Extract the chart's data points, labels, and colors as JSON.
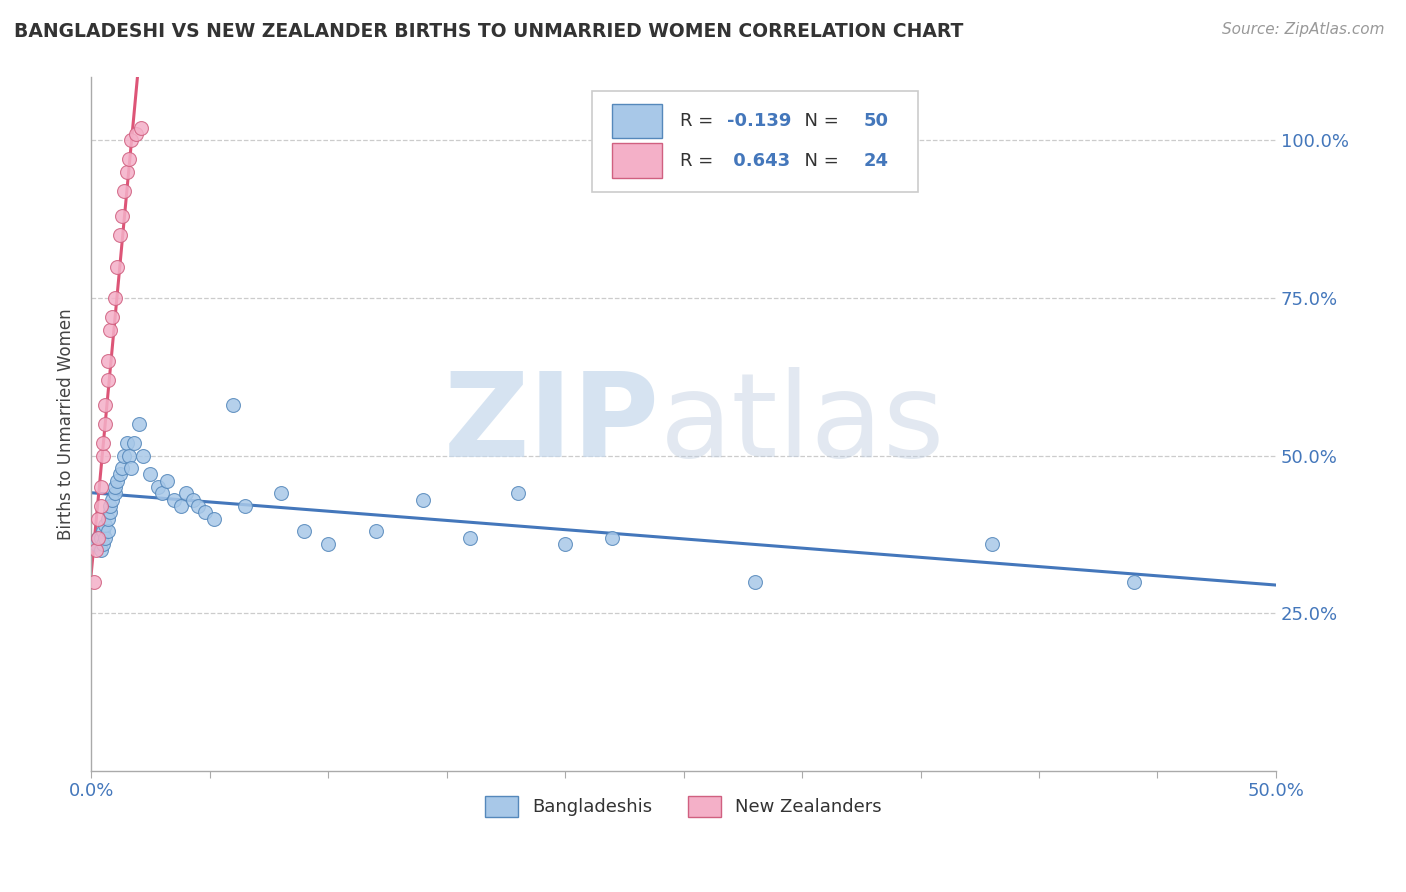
{
  "title": "BANGLADESHI VS NEW ZEALANDER BIRTHS TO UNMARRIED WOMEN CORRELATION CHART",
  "source": "Source: ZipAtlas.com",
  "ylabel": "Births to Unmarried Women",
  "xlim": [
    0.0,
    0.5
  ],
  "ylim": [
    0.0,
    1.1
  ],
  "r_bangladeshi": -0.139,
  "n_bangladeshi": 50,
  "r_nz": 0.643,
  "n_nz": 24,
  "blue_scatter_color": "#A8C8E8",
  "blue_edge_color": "#5588BB",
  "pink_scatter_color": "#F4B0C8",
  "pink_edge_color": "#D06080",
  "blue_line_color": "#4477BB",
  "pink_line_color": "#DD5577",
  "bangladeshi_x": [
    0.002,
    0.003,
    0.004,
    0.004,
    0.005,
    0.005,
    0.006,
    0.006,
    0.007,
    0.007,
    0.008,
    0.008,
    0.009,
    0.01,
    0.01,
    0.011,
    0.012,
    0.013,
    0.014,
    0.015,
    0.016,
    0.017,
    0.018,
    0.02,
    0.022,
    0.025,
    0.028,
    0.03,
    0.032,
    0.035,
    0.038,
    0.04,
    0.043,
    0.045,
    0.048,
    0.052,
    0.06,
    0.065,
    0.08,
    0.09,
    0.1,
    0.12,
    0.14,
    0.16,
    0.18,
    0.2,
    0.22,
    0.28,
    0.38,
    0.44
  ],
  "bangladeshi_y": [
    0.36,
    0.37,
    0.35,
    0.37,
    0.36,
    0.38,
    0.37,
    0.39,
    0.38,
    0.4,
    0.41,
    0.42,
    0.43,
    0.44,
    0.45,
    0.46,
    0.47,
    0.48,
    0.5,
    0.52,
    0.5,
    0.48,
    0.52,
    0.55,
    0.5,
    0.47,
    0.45,
    0.44,
    0.46,
    0.43,
    0.42,
    0.44,
    0.43,
    0.42,
    0.41,
    0.4,
    0.58,
    0.42,
    0.44,
    0.38,
    0.36,
    0.38,
    0.43,
    0.37,
    0.44,
    0.36,
    0.37,
    0.3,
    0.36,
    0.3
  ],
  "nz_x": [
    0.001,
    0.002,
    0.003,
    0.003,
    0.004,
    0.004,
    0.005,
    0.005,
    0.006,
    0.006,
    0.007,
    0.007,
    0.008,
    0.009,
    0.01,
    0.011,
    0.012,
    0.013,
    0.014,
    0.015,
    0.016,
    0.017,
    0.019,
    0.021
  ],
  "nz_y": [
    0.3,
    0.35,
    0.37,
    0.4,
    0.42,
    0.45,
    0.5,
    0.52,
    0.55,
    0.58,
    0.62,
    0.65,
    0.7,
    0.72,
    0.75,
    0.8,
    0.85,
    0.88,
    0.92,
    0.95,
    0.97,
    1.0,
    1.01,
    1.02
  ]
}
